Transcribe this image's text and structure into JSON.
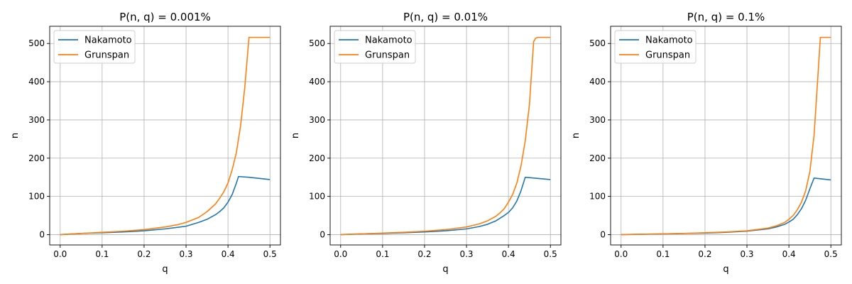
{
  "chart_data": [
    {
      "type": "line",
      "title": "P(n, q) = 0.001%",
      "xlabel": "q",
      "ylabel": "n",
      "xlim": [
        -0.025,
        0.525
      ],
      "ylim": [
        -27,
        545
      ],
      "xticks": [
        0.0,
        0.1,
        0.2,
        0.3,
        0.4,
        0.5
      ],
      "xtick_labels": [
        "0.0",
        "0.1",
        "0.2",
        "0.3",
        "0.4",
        "0.5"
      ],
      "yticks": [
        0,
        100,
        200,
        300,
        400,
        500
      ],
      "ytick_labels": [
        "0",
        "100",
        "200",
        "300",
        "400",
        "500"
      ],
      "grid": true,
      "legend": "upper-left",
      "series": [
        {
          "name": "Nakamoto",
          "color": "#1f77b4",
          "x": [
            0.0,
            0.05,
            0.1,
            0.15,
            0.2,
            0.25,
            0.3,
            0.33,
            0.35,
            0.37,
            0.38,
            0.39,
            0.4,
            0.41,
            0.42,
            0.425,
            0.45,
            0.5
          ],
          "y": [
            0,
            3,
            5,
            7,
            10,
            15,
            22,
            32,
            40,
            52,
            60,
            70,
            85,
            105,
            135,
            152,
            150,
            144
          ]
        },
        {
          "name": "Grunspan",
          "color": "#ff7f0e",
          "x": [
            0.0,
            0.05,
            0.1,
            0.15,
            0.2,
            0.25,
            0.28,
            0.3,
            0.33,
            0.35,
            0.37,
            0.38,
            0.39,
            0.4,
            0.41,
            0.42,
            0.43,
            0.44,
            0.45,
            0.47,
            0.5
          ],
          "y": [
            0,
            3,
            6,
            9,
            13,
            20,
            26,
            32,
            45,
            60,
            80,
            95,
            112,
            135,
            170,
            215,
            285,
            385,
            516,
            516,
            516
          ]
        }
      ]
    },
    {
      "type": "line",
      "title": "P(n, q) = 0.01%",
      "xlabel": "q",
      "ylabel": "n",
      "xlim": [
        -0.025,
        0.525
      ],
      "ylim": [
        -27,
        545
      ],
      "xticks": [
        0.0,
        0.1,
        0.2,
        0.3,
        0.4,
        0.5
      ],
      "xtick_labels": [
        "0.0",
        "0.1",
        "0.2",
        "0.3",
        "0.4",
        "0.5"
      ],
      "yticks": [
        0,
        100,
        200,
        300,
        400,
        500
      ],
      "ytick_labels": [
        "0",
        "100",
        "200",
        "300",
        "400",
        "500"
      ],
      "grid": true,
      "legend": "upper-left",
      "series": [
        {
          "name": "Nakamoto",
          "color": "#1f77b4",
          "x": [
            0.0,
            0.05,
            0.1,
            0.15,
            0.2,
            0.25,
            0.3,
            0.33,
            0.35,
            0.37,
            0.39,
            0.4,
            0.41,
            0.42,
            0.43,
            0.44,
            0.45,
            0.5
          ],
          "y": [
            0,
            2,
            3,
            5,
            7,
            10,
            15,
            21,
            27,
            36,
            50,
            58,
            70,
            88,
            115,
            150,
            149,
            144
          ]
        },
        {
          "name": "Grunspan",
          "color": "#ff7f0e",
          "x": [
            0.0,
            0.05,
            0.1,
            0.15,
            0.2,
            0.25,
            0.3,
            0.33,
            0.35,
            0.37,
            0.38,
            0.39,
            0.4,
            0.41,
            0.42,
            0.43,
            0.44,
            0.45,
            0.46,
            0.465,
            0.47,
            0.5
          ],
          "y": [
            0,
            2,
            4,
            6,
            9,
            13,
            20,
            28,
            36,
            48,
            57,
            68,
            85,
            105,
            135,
            180,
            245,
            340,
            505,
            514,
            516,
            516
          ]
        }
      ]
    },
    {
      "type": "line",
      "title": "P(n, q) = 0.1%",
      "xlabel": "q",
      "ylabel": "n",
      "xlim": [
        -0.025,
        0.525
      ],
      "ylim": [
        -27,
        545
      ],
      "xticks": [
        0.0,
        0.1,
        0.2,
        0.3,
        0.4,
        0.5
      ],
      "xtick_labels": [
        "0.0",
        "0.1",
        "0.2",
        "0.3",
        "0.4",
        "0.5"
      ],
      "yticks": [
        0,
        100,
        200,
        300,
        400,
        500
      ],
      "ytick_labels": [
        "0",
        "100",
        "200",
        "300",
        "400",
        "500"
      ],
      "grid": true,
      "legend": "upper-left",
      "series": [
        {
          "name": "Nakamoto",
          "color": "#1f77b4",
          "x": [
            0.0,
            0.05,
            0.1,
            0.15,
            0.2,
            0.25,
            0.3,
            0.35,
            0.37,
            0.39,
            0.4,
            0.41,
            0.42,
            0.43,
            0.44,
            0.45,
            0.46,
            0.5
          ],
          "y": [
            0,
            1,
            2,
            3,
            4,
            6,
            9,
            15,
            20,
            27,
            33,
            40,
            52,
            68,
            90,
            120,
            148,
            143
          ]
        },
        {
          "name": "Grunspan",
          "color": "#ff7f0e",
          "x": [
            0.0,
            0.05,
            0.1,
            0.15,
            0.2,
            0.25,
            0.3,
            0.35,
            0.37,
            0.39,
            0.4,
            0.41,
            0.42,
            0.43,
            0.44,
            0.45,
            0.46,
            0.47,
            0.475,
            0.5
          ],
          "y": [
            0,
            1,
            2,
            3,
            5,
            7,
            10,
            17,
            23,
            32,
            40,
            50,
            65,
            85,
            115,
            165,
            260,
            430,
            516,
            516
          ]
        }
      ]
    }
  ]
}
